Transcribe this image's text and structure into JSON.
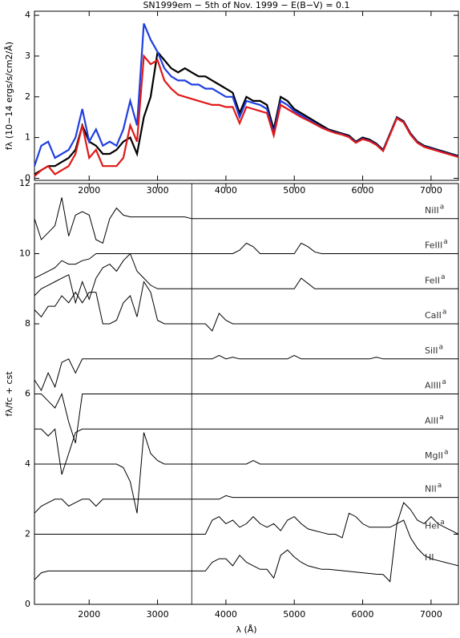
{
  "chart_data": [
    {
      "type": "line",
      "title": "SN1999em − 5th of Nov. 1999 − E(B−V) = 0.1",
      "ylabel": "fλ (10−14 ergs/s/cm2/Å)",
      "xlim": [
        1200,
        7400
      ],
      "ylim": [
        -0.05,
        4.1
      ],
      "xticks": [
        2000,
        3000,
        4000,
        5000,
        6000,
        7000
      ],
      "yticks": [
        0,
        1,
        2,
        3,
        4
      ],
      "x": [
        1200,
        1300,
        1400,
        1500,
        1600,
        1700,
        1800,
        1900,
        2000,
        2100,
        2200,
        2300,
        2400,
        2500,
        2600,
        2700,
        2800,
        2900,
        3000,
        3100,
        3200,
        3300,
        3400,
        3500,
        3600,
        3700,
        3800,
        3900,
        4000,
        4100,
        4200,
        4300,
        4400,
        4500,
        4600,
        4700,
        4800,
        4900,
        5000,
        5100,
        5200,
        5300,
        5400,
        5500,
        5600,
        5700,
        5800,
        5900,
        6000,
        6100,
        6200,
        6300,
        6400,
        6500,
        6600,
        6700,
        6800,
        6900,
        7000,
        7100,
        7200,
        7300,
        7400
      ],
      "series": [
        {
          "color": "#000000",
          "values": [
            0.1,
            0.2,
            0.3,
            0.3,
            0.4,
            0.5,
            0.7,
            1.3,
            0.9,
            0.8,
            0.6,
            0.6,
            0.7,
            0.9,
            1.0,
            0.6,
            1.5,
            2.0,
            3.1,
            2.9,
            2.7,
            2.6,
            2.7,
            2.6,
            2.5,
            2.5,
            2.4,
            2.3,
            2.2,
            2.1,
            1.6,
            2.0,
            1.9,
            1.9,
            1.8,
            1.2,
            2.0,
            1.9,
            1.7,
            1.6,
            1.5,
            1.4,
            1.3,
            1.2,
            1.15,
            1.1,
            1.05,
            0.9,
            1.0,
            0.95,
            0.85,
            0.7,
            1.1,
            1.5,
            1.4,
            1.1,
            0.9,
            0.8,
            0.75,
            0.7,
            0.65,
            0.6,
            0.55
          ]
        },
        {
          "color": "#1f3fe0",
          "values": [
            0.3,
            0.8,
            0.9,
            0.5,
            0.6,
            0.7,
            1.0,
            1.7,
            0.9,
            1.2,
            0.8,
            0.9,
            0.8,
            1.2,
            1.9,
            1.3,
            3.8,
            3.4,
            3.1,
            2.7,
            2.5,
            2.4,
            2.4,
            2.3,
            2.3,
            2.2,
            2.2,
            2.1,
            2.0,
            2.0,
            1.5,
            1.9,
            1.85,
            1.8,
            1.7,
            1.1,
            1.9,
            1.8,
            1.65,
            1.55,
            1.45,
            1.35,
            1.25,
            1.18,
            1.12,
            1.08,
            1.02,
            0.88,
            0.97,
            0.92,
            0.83,
            0.68,
            1.08,
            1.48,
            1.38,
            1.08,
            0.88,
            0.78,
            0.73,
            0.68,
            0.63,
            0.58,
            0.53
          ]
        },
        {
          "color": "#e01818",
          "values": [
            0.05,
            0.2,
            0.3,
            0.1,
            0.2,
            0.3,
            0.6,
            1.3,
            0.5,
            0.7,
            0.3,
            0.3,
            0.3,
            0.5,
            1.3,
            0.9,
            3.0,
            2.8,
            2.9,
            2.4,
            2.2,
            2.05,
            2.0,
            1.95,
            1.9,
            1.85,
            1.8,
            1.8,
            1.75,
            1.75,
            1.35,
            1.75,
            1.7,
            1.65,
            1.6,
            1.05,
            1.8,
            1.7,
            1.6,
            1.5,
            1.42,
            1.33,
            1.24,
            1.17,
            1.11,
            1.07,
            1.01,
            0.87,
            0.96,
            0.91,
            0.82,
            0.67,
            1.07,
            1.47,
            1.37,
            1.07,
            0.87,
            0.77,
            0.72,
            0.67,
            0.62,
            0.57,
            0.52
          ]
        }
      ]
    },
    {
      "type": "line",
      "xlabel": "λ (Å)",
      "ylabel": "fλ/fc + cst",
      "xlim": [
        1200,
        7400
      ],
      "ylim": [
        0,
        12
      ],
      "xticks": [
        2000,
        3000,
        4000,
        5000,
        6000,
        7000
      ],
      "yticks": [
        0,
        2,
        4,
        6,
        8,
        10,
        12
      ],
      "vline": 3500,
      "x": [
        1200,
        1300,
        1400,
        1500,
        1600,
        1700,
        1800,
        1900,
        2000,
        2100,
        2200,
        2300,
        2400,
        2500,
        2600,
        2700,
        2800,
        2900,
        3000,
        3100,
        3200,
        3300,
        3400,
        3500,
        3600,
        3700,
        3800,
        3900,
        4000,
        4100,
        4200,
        4300,
        4400,
        4500,
        4600,
        4700,
        4800,
        4900,
        5000,
        5100,
        5200,
        5300,
        5400,
        5500,
        5600,
        5700,
        5800,
        5900,
        6000,
        6100,
        6200,
        6300,
        6400,
        6500,
        6600,
        6700,
        6800,
        6900,
        7000,
        7100,
        7200,
        7300,
        7400
      ],
      "series": [
        {
          "name": "NiII",
          "label_superscript": "a",
          "color": "#000000",
          "values": [
            11,
            10.4,
            10.6,
            10.8,
            11.6,
            10.5,
            11.1,
            11.2,
            11.1,
            10.4,
            10.3,
            11.0,
            11.3,
            11.1,
            11.05,
            11.05,
            11.05,
            11.05,
            11.05,
            11.05,
            11.05,
            11.05,
            11.05,
            11,
            11,
            11,
            11,
            11,
            11,
            11,
            11,
            11,
            11,
            11,
            11,
            11,
            11,
            11,
            11,
            11,
            11,
            11,
            11,
            11,
            11,
            11,
            11,
            11,
            11,
            11,
            11,
            11,
            11,
            11,
            11,
            11,
            11,
            11,
            11,
            11,
            11,
            11,
            11
          ]
        },
        {
          "name": "FeIII",
          "label_superscript": "a",
          "color": "#000000",
          "values": [
            9.3,
            9.4,
            9.5,
            9.6,
            9.8,
            9.7,
            9.7,
            9.8,
            9.85,
            10,
            10,
            10,
            10,
            10,
            10,
            10,
            10,
            10,
            10,
            10,
            10,
            10,
            10,
            10,
            10,
            10,
            10,
            10,
            10,
            10,
            10.1,
            10.3,
            10.2,
            10,
            10,
            10,
            10,
            10,
            10,
            10.3,
            10.2,
            10.05,
            10,
            10,
            10,
            10,
            10,
            10,
            10,
            10,
            10,
            10,
            10,
            10,
            10,
            10,
            10,
            10,
            10,
            10,
            10,
            10,
            10
          ]
        },
        {
          "name": "FeII",
          "label_superscript": "a",
          "color": "#000000",
          "values": [
            8.8,
            9.0,
            9.1,
            9.2,
            9.3,
            9.4,
            8.6,
            9.2,
            8.7,
            9.3,
            9.6,
            9.7,
            9.5,
            9.8,
            10.0,
            9.5,
            9.3,
            9.1,
            9,
            9,
            9,
            9,
            9,
            9,
            9,
            9,
            9,
            9,
            9,
            9,
            9,
            9,
            9,
            9,
            9,
            9,
            9,
            9,
            9,
            9.3,
            9.15,
            9,
            9,
            9,
            9,
            9,
            9,
            9,
            9,
            9,
            9,
            9,
            9,
            9,
            9,
            9,
            9,
            9,
            9,
            9,
            9,
            9,
            9
          ]
        },
        {
          "name": "CaII",
          "label_superscript": "a",
          "color": "#000000",
          "values": [
            8.4,
            8.2,
            8.5,
            8.5,
            8.8,
            8.6,
            8.9,
            8.6,
            8.9,
            8.9,
            8,
            8,
            8.1,
            8.6,
            8.8,
            8.2,
            9.2,
            8.9,
            8.1,
            8,
            8,
            8,
            8,
            8,
            8,
            8,
            7.8,
            8.3,
            8.1,
            8,
            8,
            8,
            8,
            8,
            8,
            8,
            8,
            8,
            8,
            8,
            8,
            8,
            8,
            8,
            8,
            8,
            8,
            8,
            8,
            8,
            8,
            8,
            8,
            8,
            8,
            8,
            8,
            8,
            8,
            8,
            8,
            8,
            8
          ]
        },
        {
          "name": "SiII",
          "label_superscript": "a",
          "color": "#000000",
          "values": [
            6.4,
            6.1,
            6.6,
            6.2,
            6.9,
            7,
            6.6,
            7,
            7,
            7,
            7,
            7,
            7,
            7,
            7,
            7,
            7,
            7,
            7,
            7,
            7,
            7,
            7,
            7,
            7,
            7,
            7,
            7.1,
            7,
            7.05,
            7,
            7,
            7,
            7,
            7,
            7,
            7,
            7,
            7.1,
            7,
            7,
            7,
            7,
            7,
            7,
            7,
            7,
            7,
            7,
            7,
            7.05,
            7,
            7,
            7,
            7,
            7,
            7,
            7,
            7,
            7,
            7,
            7,
            7
          ]
        },
        {
          "name": "AlIII",
          "label_superscript": "a",
          "color": "#000000",
          "values": [
            6,
            6,
            5.8,
            5.6,
            6,
            5.2,
            4.6,
            6,
            6,
            6,
            6,
            6,
            6,
            6,
            6,
            6,
            6,
            6,
            6,
            6,
            6,
            6,
            6,
            6,
            6,
            6,
            6,
            6,
            6,
            6,
            6,
            6,
            6,
            6,
            6,
            6,
            6,
            6,
            6,
            6,
            6,
            6,
            6,
            6,
            6,
            6,
            6,
            6,
            6,
            6,
            6,
            6,
            6,
            6,
            6,
            6,
            6,
            6,
            6,
            6,
            6,
            6,
            6
          ]
        },
        {
          "name": "AlII",
          "label_superscript": "a",
          "color": "#000000",
          "values": [
            5,
            5,
            4.8,
            5,
            3.7,
            4.3,
            4.9,
            5,
            5,
            5,
            5,
            5,
            5,
            5,
            5,
            5,
            5,
            5,
            5,
            5,
            5,
            5,
            5,
            5,
            5,
            5,
            5,
            5,
            5,
            5,
            5,
            5,
            5,
            5,
            5,
            5,
            5,
            5,
            5,
            5,
            5,
            5,
            5,
            5,
            5,
            5,
            5,
            5,
            5,
            5,
            5,
            5,
            5,
            5,
            5,
            5,
            5,
            5,
            5,
            5,
            5,
            5,
            5
          ]
        },
        {
          "name": "MgII",
          "label_superscript": "a",
          "color": "#000000",
          "values": [
            4,
            4,
            4,
            4,
            4,
            4,
            4,
            4,
            4,
            4,
            4,
            4,
            4,
            3.9,
            3.5,
            2.6,
            4.9,
            4.3,
            4.1,
            4,
            4,
            4,
            4,
            4,
            4,
            4,
            4,
            4,
            4,
            4,
            4,
            4,
            4.1,
            4,
            4,
            4,
            4,
            4,
            4,
            4,
            4,
            4,
            4,
            4,
            4,
            4,
            4,
            4,
            4,
            4,
            4,
            4,
            4,
            4,
            4,
            4,
            4,
            4,
            4,
            4,
            4,
            4,
            4
          ]
        },
        {
          "name": "NII",
          "label_superscript": "a",
          "color": "#000000",
          "values": [
            2.6,
            2.8,
            2.9,
            3,
            3,
            2.8,
            2.9,
            3,
            3,
            2.8,
            3,
            3,
            3,
            3,
            3,
            3,
            3,
            3,
            3,
            3,
            3,
            3,
            3,
            3,
            3,
            3,
            3,
            3,
            3.1,
            3.05,
            3.05,
            3.05,
            3.05,
            3.05,
            3.05,
            3.05,
            3.05,
            3.05,
            3.05,
            3.05,
            3.05,
            3.05,
            3.05,
            3.05,
            3.05,
            3.05,
            3.05,
            3.05,
            3.05,
            3.05,
            3.05,
            3.05,
            3.05,
            3.05,
            3.05,
            3.05,
            3.05,
            3.05,
            3.05,
            3.05,
            3.05,
            3.05,
            3.05
          ]
        },
        {
          "name": "HeI",
          "label_superscript": "a",
          "color": "#000000",
          "values": [
            2,
            2,
            2,
            2,
            2,
            2,
            2,
            2,
            2,
            2,
            2,
            2,
            2,
            2,
            2,
            2,
            2,
            2,
            2,
            2,
            2,
            2,
            2,
            2,
            2,
            2,
            2.4,
            2.5,
            2.3,
            2.4,
            2.2,
            2.3,
            2.5,
            2.3,
            2.2,
            2.3,
            2.1,
            2.4,
            2.5,
            2.3,
            2.15,
            2.1,
            2.05,
            2,
            2,
            1.9,
            2.6,
            2.5,
            2.3,
            2.2,
            2.2,
            2.2,
            2.2,
            2.3,
            2.9,
            2.7,
            2.4,
            2.3,
            2.5,
            2.3,
            2.2,
            2.1,
            2
          ]
        },
        {
          "name": "HI",
          "color": "#000000",
          "values": [
            0.7,
            0.9,
            0.95,
            0.95,
            0.95,
            0.95,
            0.95,
            0.95,
            0.95,
            0.95,
            0.95,
            0.95,
            0.95,
            0.95,
            0.95,
            0.95,
            0.95,
            0.95,
            0.95,
            0.95,
            0.95,
            0.95,
            0.95,
            0.95,
            0.95,
            0.95,
            1.2,
            1.3,
            1.3,
            1.1,
            1.4,
            1.2,
            1.1,
            1,
            1,
            0.75,
            1.4,
            1.55,
            1.35,
            1.2,
            1.1,
            1.05,
            1,
            1,
            0.98,
            0.96,
            0.94,
            0.92,
            0.9,
            0.88,
            0.86,
            0.85,
            0.65,
            2.3,
            2.4,
            1.9,
            1.6,
            1.4,
            1.3,
            1.25,
            1.2,
            1.15,
            1.1
          ]
        }
      ]
    }
  ]
}
